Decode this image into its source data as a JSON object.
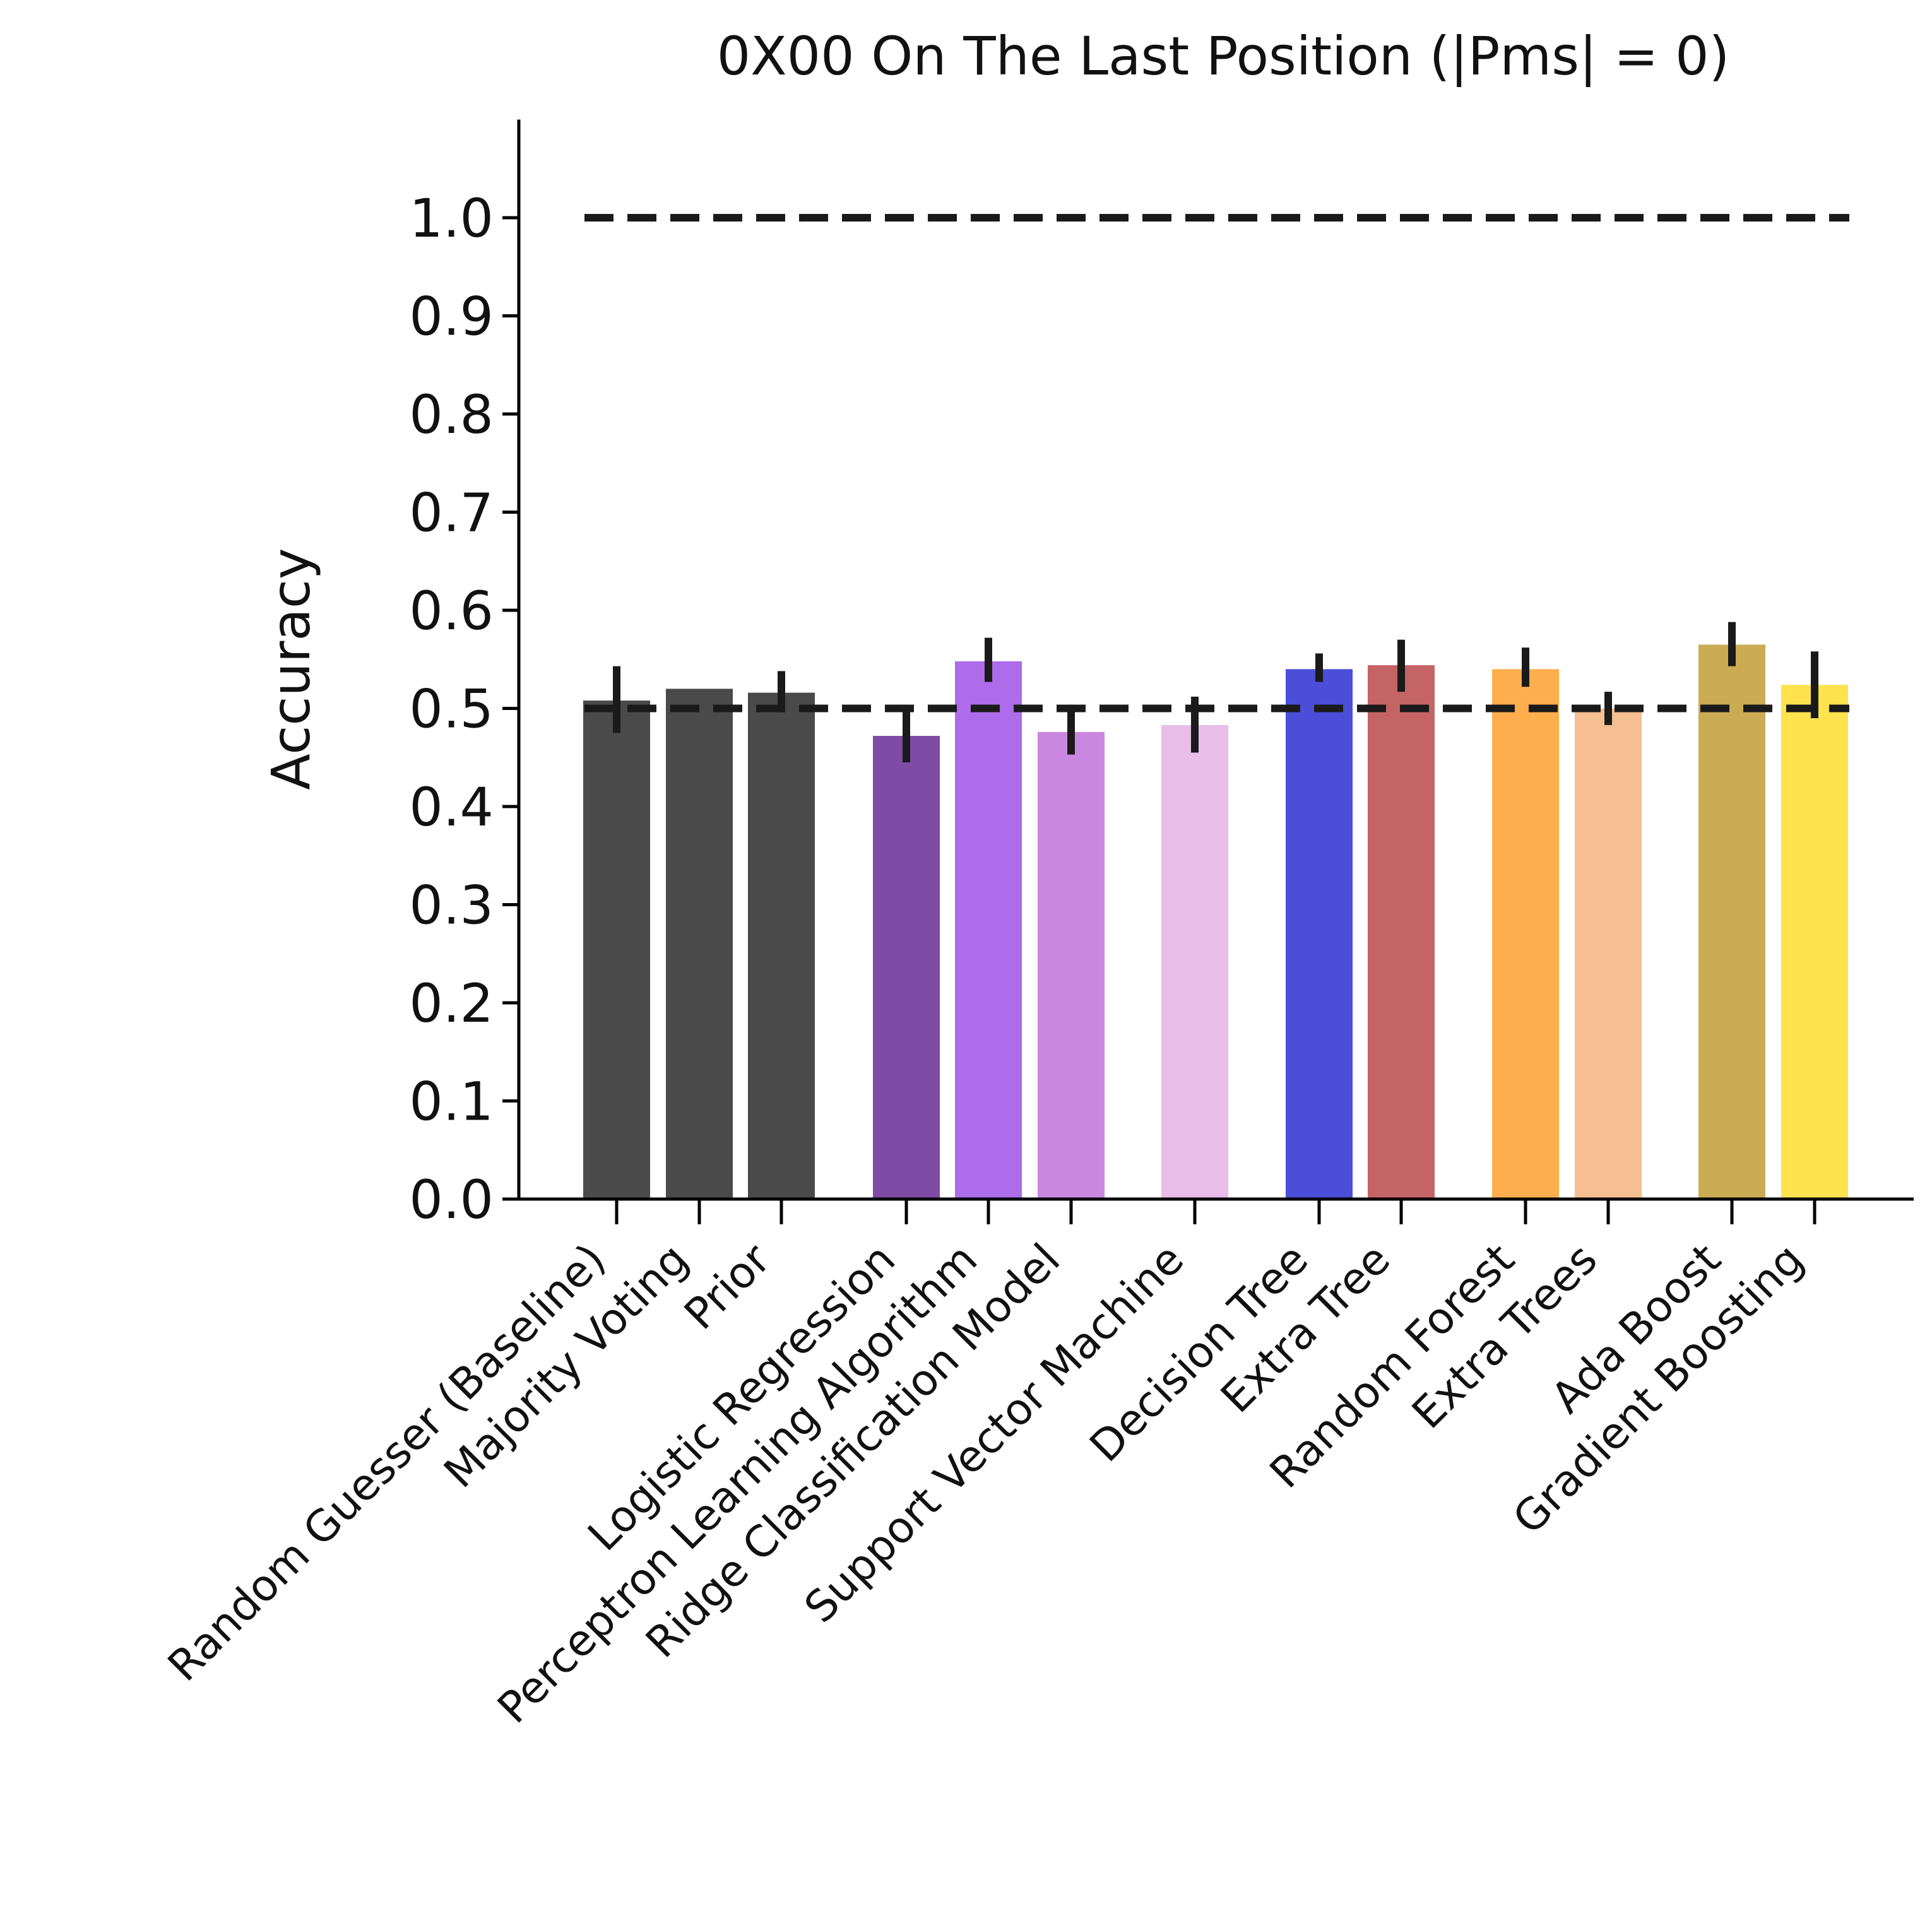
{
  "chart_data": {
    "type": "bar",
    "title": "0X00 On The Last Position  (|Pms| = 0)",
    "ylabel": "Accuracy",
    "xlabel": "",
    "ylim": [
      0,
      1.1
    ],
    "yticks": [
      0.0,
      0.1,
      0.2,
      0.3,
      0.4,
      0.5,
      0.6,
      0.7,
      0.8,
      0.9,
      1.0
    ],
    "ytick_labels": [
      "0.0",
      "0.1",
      "0.2",
      "0.3",
      "0.4",
      "0.5",
      "0.6",
      "0.7",
      "0.8",
      "0.9",
      "1.0"
    ],
    "grid": false,
    "legend": "none",
    "reference_lines": [
      {
        "y": 1.0,
        "style": "dashed",
        "color": "#1a1a1a"
      },
      {
        "y": 0.5,
        "style": "dashed",
        "color": "#1a1a1a"
      }
    ],
    "bars": [
      {
        "label": "Random Guesser (Baseline)",
        "value": 0.508,
        "err_low": 0.475,
        "err_high": 0.543,
        "color": "#4a4a4a"
      },
      {
        "label": "Majority Voting",
        "value": 0.52,
        "err_low": 0.52,
        "err_high": 0.52,
        "color": "#4a4a4a"
      },
      {
        "label": "Prior",
        "value": 0.516,
        "err_low": 0.496,
        "err_high": 0.538,
        "color": "#4a4a4a"
      },
      {
        "label": "Logistic Regression",
        "value": 0.472,
        "err_low": 0.445,
        "err_high": 0.498,
        "color": "#7e4ba5"
      },
      {
        "label": "Perceptron Learning Algorithm",
        "value": 0.548,
        "err_low": 0.527,
        "err_high": 0.572,
        "color": "#ad6ce9"
      },
      {
        "label": "Ridge Classification Model",
        "value": 0.476,
        "err_low": 0.453,
        "err_high": 0.498,
        "color": "#c987e0"
      },
      {
        "label": "Support Vector Machine",
        "value": 0.483,
        "err_low": 0.455,
        "err_high": 0.512,
        "color": "#e8bde8"
      },
      {
        "label": "Decision Tree",
        "value": 0.54,
        "err_low": 0.527,
        "err_high": 0.556,
        "color": "#4a4ed8"
      },
      {
        "label": "Extra Tree",
        "value": 0.544,
        "err_low": 0.517,
        "err_high": 0.57,
        "color": "#c56465"
      },
      {
        "label": "Random Forest",
        "value": 0.54,
        "err_low": 0.522,
        "err_high": 0.562,
        "color": "#ffae4e"
      },
      {
        "label": "Extra Trees",
        "value": 0.5,
        "err_low": 0.483,
        "err_high": 0.517,
        "color": "#f5bf91"
      },
      {
        "label": "Ada Boost",
        "value": 0.565,
        "err_low": 0.543,
        "err_high": 0.588,
        "color": "#cbab54"
      },
      {
        "label": "Gradient Boosting",
        "value": 0.524,
        "err_low": 0.49,
        "err_high": 0.558,
        "color": "#fee34f"
      }
    ]
  }
}
